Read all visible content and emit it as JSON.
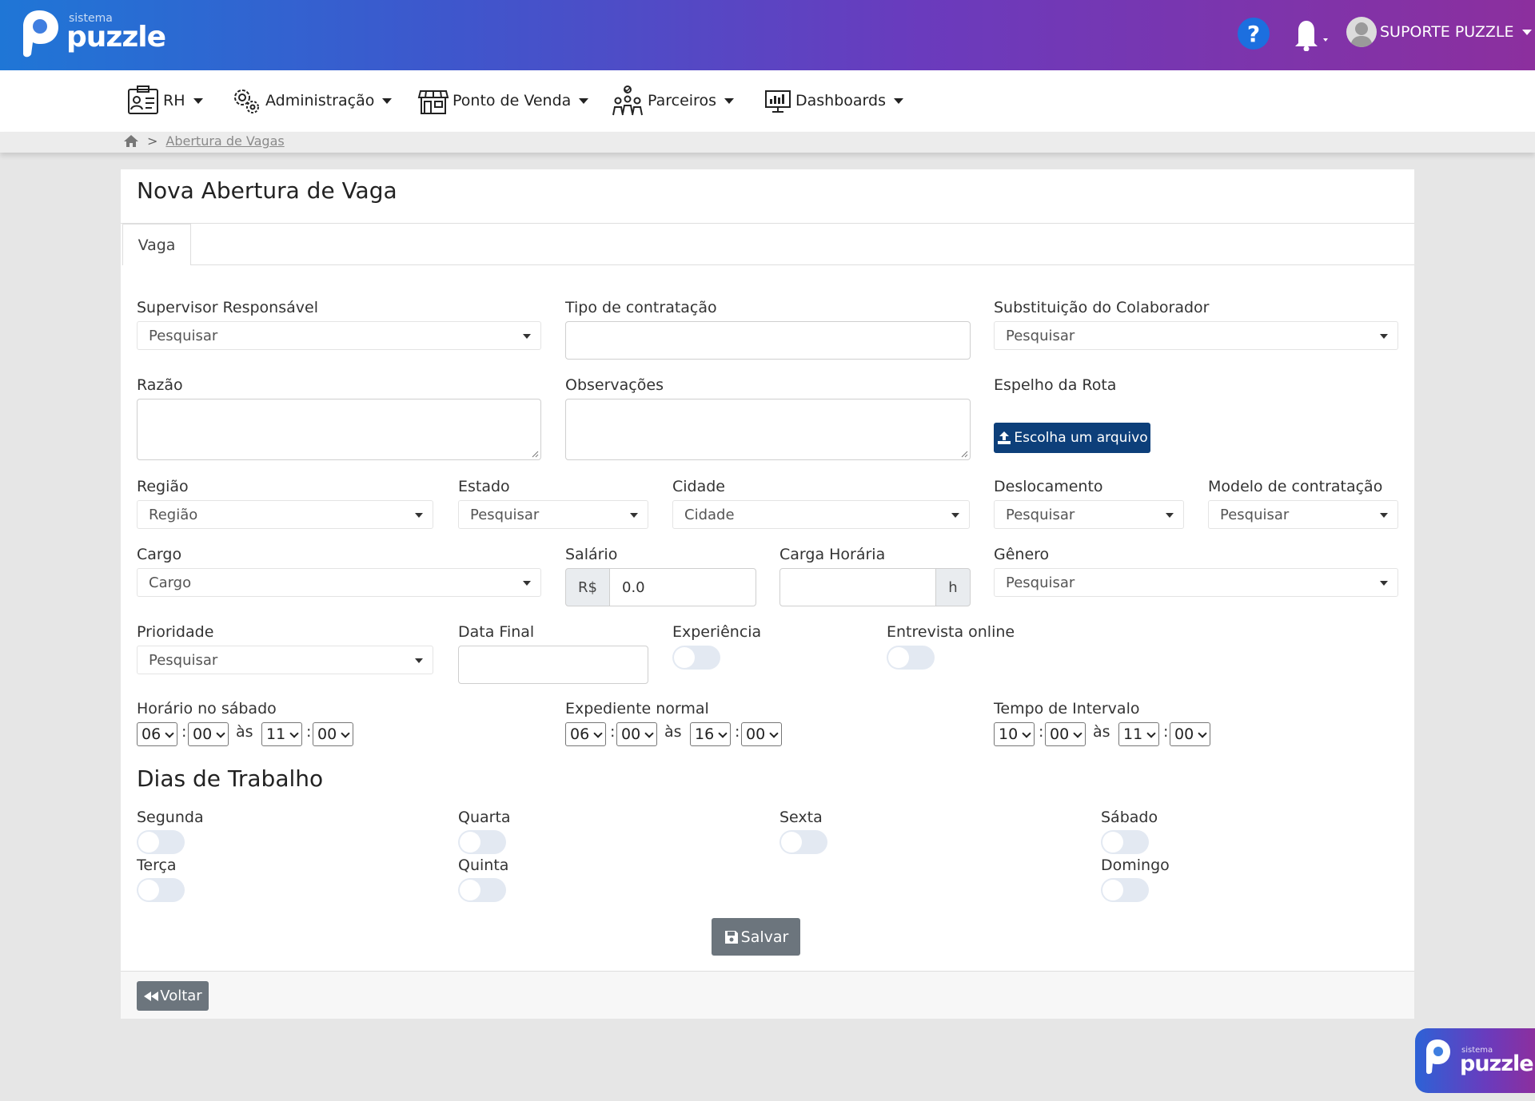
{
  "brand": {
    "small": "sistema",
    "big": "puzzle",
    "colors": {
      "primary": "#1f76d6",
      "secondary": "#8c2f9e"
    }
  },
  "header": {
    "help_icon": "question-circle-icon",
    "bell_icon": "bell-icon",
    "user_name": "SUPORTE PUZZLE"
  },
  "nav": [
    {
      "label": "RH",
      "icon": "id-card-icon"
    },
    {
      "label": "Administração",
      "icon": "gears-icon"
    },
    {
      "label": "Ponto de Venda",
      "icon": "store-icon"
    },
    {
      "label": "Parceiros",
      "icon": "people-icon"
    },
    {
      "label": "Dashboards",
      "icon": "monitor-chart-icon"
    }
  ],
  "breadcrumb": {
    "home_icon": "home-icon",
    "separator": ">",
    "current": "Abertura de Vagas"
  },
  "page": {
    "title": "Nova Abertura de Vaga",
    "tab": "Vaga"
  },
  "form": {
    "supervisor": {
      "label": "Supervisor Responsável",
      "value": "Pesquisar"
    },
    "tipo_contratacao": {
      "label": "Tipo de contratação",
      "value": ""
    },
    "substituicao": {
      "label": "Substituição do Colaborador",
      "value": "Pesquisar"
    },
    "razao": {
      "label": "Razão"
    },
    "observacoes": {
      "label": "Observações"
    },
    "espelho_rota": {
      "label": "Espelho da Rota",
      "button": "Escolha um arquivo",
      "icon": "upload-icon"
    },
    "regiao": {
      "label": "Região",
      "value": "Região"
    },
    "estado": {
      "label": "Estado",
      "value": "Pesquisar"
    },
    "cidade": {
      "label": "Cidade",
      "value": "Cidade"
    },
    "deslocamento": {
      "label": "Deslocamento",
      "value": "Pesquisar"
    },
    "modelo_contratacao": {
      "label": "Modelo de contratação",
      "value": "Pesquisar"
    },
    "cargo": {
      "label": "Cargo",
      "value": "Cargo"
    },
    "salario": {
      "label": "Salário",
      "prefix": "R$",
      "value": "0.0"
    },
    "carga_horaria": {
      "label": "Carga Horária",
      "suffix": "h",
      "value": ""
    },
    "genero": {
      "label": "Gênero",
      "value": "Pesquisar"
    },
    "prioridade": {
      "label": "Prioridade",
      "value": "Pesquisar"
    },
    "data_final": {
      "label": "Data Final",
      "value": ""
    },
    "experiencia": {
      "label": "Experiência",
      "checked": false
    },
    "entrevista_online": {
      "label": "Entrevista online",
      "checked": false
    },
    "horario_sabado": {
      "label": "Horário no sábado",
      "h1": "06",
      "m1": "00",
      "sep": "às",
      "h2": "11",
      "m2": "00"
    },
    "expediente_normal": {
      "label": "Expediente normal",
      "h1": "06",
      "m1": "00",
      "sep": "às",
      "h2": "16",
      "m2": "00"
    },
    "tempo_intervalo": {
      "label": "Tempo de Intervalo",
      "h1": "10",
      "m1": "00",
      "sep": "às",
      "h2": "11",
      "m2": "00"
    }
  },
  "dias": {
    "title": "Dias de Trabalho",
    "segunda": "Segunda",
    "terca": "Terça",
    "quarta": "Quarta",
    "quinta": "Quinta",
    "sexta": "Sexta",
    "sabado": "Sábado",
    "domingo": "Domingo"
  },
  "actions": {
    "save": "Salvar",
    "save_icon": "floppy-disk-icon",
    "back": "Voltar",
    "back_icon": "backward-icon"
  }
}
